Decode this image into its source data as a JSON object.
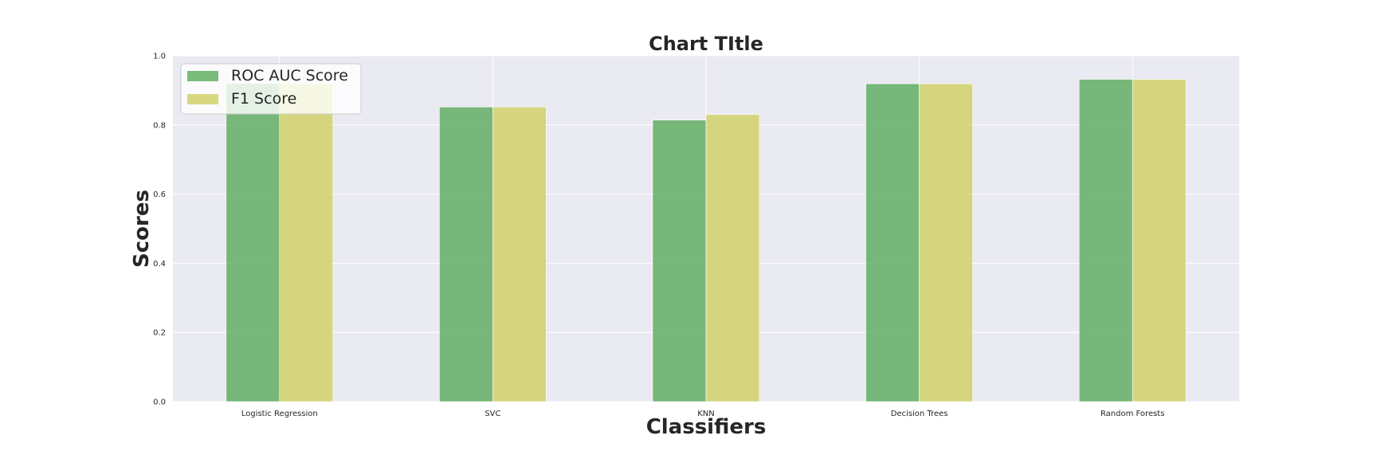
{
  "chart_data": {
    "type": "bar",
    "title": "Chart TItle",
    "xlabel": "Classifiers",
    "ylabel": "Scores",
    "ylim": [
      0,
      1
    ],
    "yticks": [
      "0.0",
      "0.2",
      "0.4",
      "0.6",
      "0.8",
      "1.0"
    ],
    "categories": [
      "Logistic Regression",
      "SVC",
      "KNN",
      "Decision Trees",
      "Random Forests"
    ],
    "series": [
      {
        "name": "ROC AUC Score",
        "color": "#5aaa5a",
        "values": [
          0.92,
          0.852,
          0.814,
          0.919,
          0.932
        ]
      },
      {
        "name": "F1 Score",
        "color": "#cfcf62",
        "values": [
          0.92,
          0.852,
          0.83,
          0.919,
          0.932
        ]
      }
    ],
    "grid": true,
    "legend": "top-left"
  }
}
